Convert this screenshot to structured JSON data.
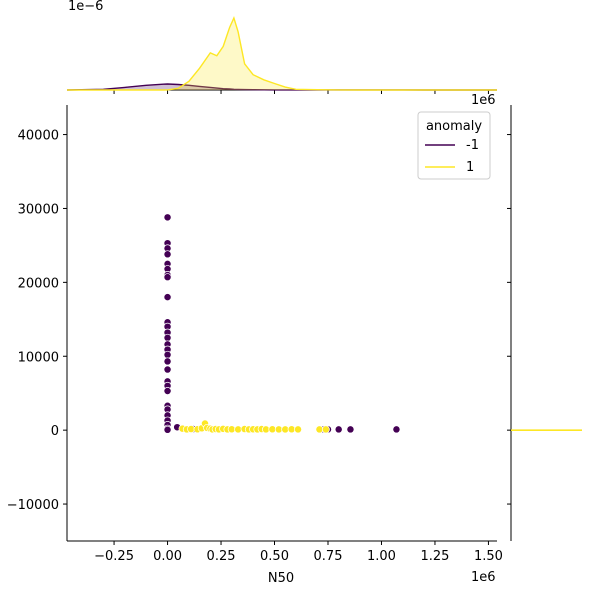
{
  "chart_data": {
    "type": "scatter",
    "subtype": "jointplot",
    "x_label": "N50",
    "y_label": "",
    "x_offset_label": "1e6",
    "y_offset_label": "1e6",
    "top_marginal_offset_label": "1e−6",
    "xlim": [
      -470000,
      1540000
    ],
    "ylim": [
      -15000,
      44000
    ],
    "x_ticks": [
      -0.25,
      0.0,
      0.25,
      0.5,
      0.75,
      1.0,
      1.25,
      1.5
    ],
    "x_tick_labels": [
      "−0.25",
      "0.00",
      "0.25",
      "0.50",
      "0.75",
      "1.00",
      "1.25",
      "1.50"
    ],
    "y_ticks": [
      -10000,
      0,
      10000,
      20000,
      30000,
      40000
    ],
    "y_tick_labels": [
      "−10000",
      "0",
      "10000",
      "20000",
      "30000",
      "40000"
    ],
    "legend": {
      "title": "anomaly",
      "position": "top-right",
      "entries": [
        {
          "label": "-1",
          "color": "#440154"
        },
        {
          "label": "1",
          "color": "#fde725"
        }
      ]
    },
    "series": [
      {
        "name": "-1",
        "color": "#440154",
        "points": [
          [
            0,
            28800
          ],
          [
            0,
            25300
          ],
          [
            0,
            24600
          ],
          [
            0,
            23800
          ],
          [
            0,
            22500
          ],
          [
            0,
            21800
          ],
          [
            0,
            21000
          ],
          [
            0,
            20700
          ],
          [
            0,
            18000
          ],
          [
            0,
            14600
          ],
          [
            0,
            14000
          ],
          [
            0,
            13200
          ],
          [
            0,
            12500
          ],
          [
            0,
            11600
          ],
          [
            0,
            10900
          ],
          [
            0,
            10200
          ],
          [
            0,
            9300
          ],
          [
            0,
            8200
          ],
          [
            0,
            6600
          ],
          [
            0,
            6000
          ],
          [
            0,
            5300
          ],
          [
            0,
            3300
          ],
          [
            0,
            2800
          ],
          [
            0,
            2000
          ],
          [
            0,
            1300
          ],
          [
            0,
            700
          ],
          [
            0,
            200
          ],
          [
            0,
            50
          ],
          [
            45000,
            400
          ],
          [
            120000,
            150
          ],
          [
            730000,
            100
          ],
          [
            750000,
            100
          ],
          [
            800000,
            100
          ],
          [
            855000,
            100
          ],
          [
            1070000,
            100
          ]
        ]
      },
      {
        "name": "1",
        "color": "#fde725",
        "points": [
          [
            70000,
            200
          ],
          [
            90000,
            100
          ],
          [
            110000,
            150
          ],
          [
            140000,
            120
          ],
          [
            160000,
            250
          ],
          [
            175000,
            900
          ],
          [
            185000,
            300
          ],
          [
            200000,
            200
          ],
          [
            210000,
            100
          ],
          [
            225000,
            150
          ],
          [
            240000,
            100
          ],
          [
            260000,
            180
          ],
          [
            280000,
            100
          ],
          [
            300000,
            120
          ],
          [
            330000,
            100
          ],
          [
            360000,
            150
          ],
          [
            380000,
            100
          ],
          [
            400000,
            120
          ],
          [
            420000,
            100
          ],
          [
            440000,
            150
          ],
          [
            460000,
            100
          ],
          [
            490000,
            120
          ],
          [
            520000,
            100
          ],
          [
            550000,
            100
          ],
          [
            580000,
            120
          ],
          [
            610000,
            100
          ],
          [
            710000,
            100
          ],
          [
            740000,
            100
          ]
        ]
      }
    ],
    "top_marginal": {
      "type": "kde",
      "x": [
        -470000,
        -300000,
        -200000,
        -100000,
        -20000,
        0,
        50000,
        100000,
        150000,
        200000,
        230000,
        260000,
        290000,
        310000,
        330000,
        360000,
        400000,
        450000,
        500000,
        550000,
        600000,
        700000,
        800000,
        900000,
        1000000,
        1100000,
        1200000,
        1540000
      ],
      "series": [
        {
          "name": "-1",
          "color": "#440154",
          "density": [
            0.0,
            0.05,
            0.18,
            0.32,
            0.4,
            0.41,
            0.38,
            0.32,
            0.25,
            0.18,
            0.13,
            0.09,
            0.07,
            0.05,
            0.04,
            0.03,
            0.02,
            0.015,
            0.01,
            0.008,
            0.006,
            0.006,
            0.008,
            0.01,
            0.008,
            0.005,
            0.002,
            0.0
          ]
        },
        {
          "name": "1",
          "color": "#fde725",
          "density": [
            0.0,
            0.0,
            0.0,
            0.0,
            0.0,
            0.01,
            0.12,
            0.6,
            1.5,
            2.55,
            2.35,
            3.0,
            4.3,
            4.95,
            4.0,
            1.8,
            1.05,
            0.7,
            0.45,
            0.2,
            0.05,
            0.02,
            0.01,
            0.0,
            0.0,
            0.0,
            0.0,
            0.0
          ]
        }
      ]
    },
    "right_marginal": {
      "type": "kde",
      "series": [
        {
          "name": "1",
          "color": "#fde725",
          "peak_at_y": 0
        }
      ]
    }
  }
}
